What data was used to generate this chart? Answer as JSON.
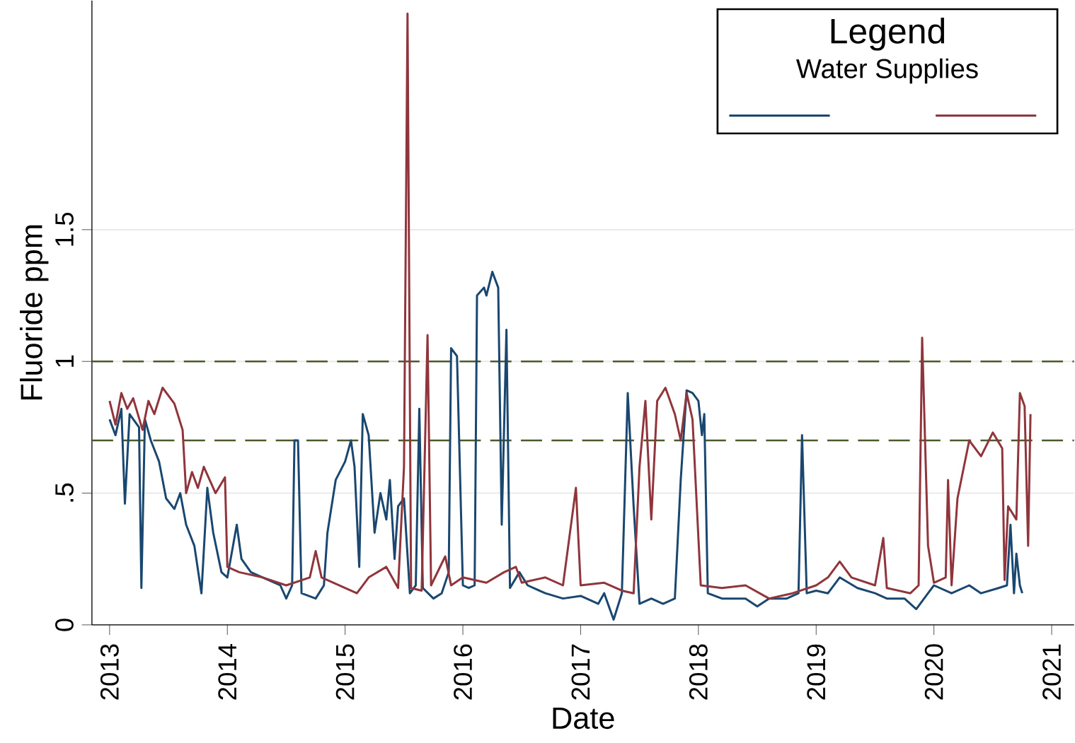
{
  "chart_data": {
    "type": "line",
    "xlabel": "Date",
    "ylabel": "Fluoride ppm",
    "legend_title": "Legend",
    "annotations": [
      "Water Supplies"
    ],
    "xlim": [
      2012.85,
      2021.19
    ],
    "xticks": [
      2013,
      2014,
      2015,
      2016,
      2017,
      2018,
      2019,
      2020,
      2021
    ],
    "ylim": [
      0,
      2.37
    ],
    "yticks": [
      0,
      {
        "value": 0.5,
        "label": ".5"
      },
      1,
      1.5
    ],
    "grid": "y",
    "ref_lines": [
      {
        "axis": "y",
        "value": 1.0,
        "color": "#4b5a2a",
        "line_style": "dashed"
      },
      {
        "axis": "y",
        "value": 0.7,
        "color": "#4b5a2a",
        "line_style": "dashed"
      }
    ],
    "series": [
      {
        "color": "#1a476f",
        "x": [
          2013.0,
          2013.05,
          2013.1,
          2013.13,
          2013.17,
          2013.25,
          2013.27,
          2013.3,
          2013.35,
          2013.42,
          2013.48,
          2013.55,
          2013.6,
          2013.65,
          2013.72,
          2013.78,
          2013.83,
          2013.88,
          2013.95,
          2014.0,
          2014.08,
          2014.12,
          2014.2,
          2014.3,
          2014.45,
          2014.5,
          2014.55,
          2014.57,
          2014.6,
          2014.63,
          2014.75,
          2014.82,
          2014.85,
          2014.92,
          2015.0,
          2015.05,
          2015.08,
          2015.12,
          2015.15,
          2015.2,
          2015.25,
          2015.3,
          2015.35,
          2015.38,
          2015.42,
          2015.45,
          2015.5,
          2015.55,
          2015.6,
          2015.63,
          2015.66,
          2015.75,
          2015.82,
          2015.88,
          2015.9,
          2015.95,
          2016.0,
          2016.05,
          2016.1,
          2016.12,
          2016.18,
          2016.2,
          2016.25,
          2016.3,
          2016.33,
          2016.37,
          2016.4,
          2016.48,
          2016.55,
          2016.7,
          2016.85,
          2017.0,
          2017.15,
          2017.2,
          2017.28,
          2017.35,
          2017.4,
          2017.45,
          2017.5,
          2017.6,
          2017.7,
          2017.8,
          2017.85,
          2017.9,
          2017.95,
          2018.0,
          2018.03,
          2018.05,
          2018.08,
          2018.2,
          2018.4,
          2018.5,
          2018.6,
          2018.75,
          2018.85,
          2018.88,
          2018.92,
          2019.0,
          2019.1,
          2019.2,
          2019.35,
          2019.5,
          2019.6,
          2019.75,
          2019.85,
          2019.95,
          2020.0,
          2020.15,
          2020.3,
          2020.4,
          2020.55,
          2020.62,
          2020.65,
          2020.68,
          2020.7,
          2020.73,
          2020.75
        ],
        "values": [
          0.78,
          0.72,
          0.82,
          0.46,
          0.8,
          0.75,
          0.14,
          0.78,
          0.7,
          0.62,
          0.48,
          0.44,
          0.5,
          0.38,
          0.3,
          0.12,
          0.52,
          0.35,
          0.2,
          0.18,
          0.38,
          0.25,
          0.2,
          0.18,
          0.15,
          0.1,
          0.15,
          0.7,
          0.7,
          0.12,
          0.1,
          0.15,
          0.35,
          0.55,
          0.62,
          0.7,
          0.6,
          0.22,
          0.8,
          0.72,
          0.35,
          0.5,
          0.4,
          0.55,
          0.25,
          0.45,
          0.48,
          0.12,
          0.15,
          0.82,
          0.14,
          0.1,
          0.12,
          0.2,
          1.05,
          1.02,
          0.15,
          0.14,
          0.15,
          1.25,
          1.28,
          1.25,
          1.34,
          1.28,
          0.38,
          1.12,
          0.14,
          0.2,
          0.15,
          0.12,
          0.1,
          0.11,
          0.08,
          0.12,
          0.02,
          0.12,
          0.88,
          0.45,
          0.08,
          0.1,
          0.08,
          0.1,
          0.55,
          0.89,
          0.88,
          0.85,
          0.72,
          0.8,
          0.12,
          0.1,
          0.1,
          0.07,
          0.1,
          0.1,
          0.12,
          0.72,
          0.12,
          0.13,
          0.12,
          0.18,
          0.14,
          0.12,
          0.1,
          0.1,
          0.06,
          0.12,
          0.15,
          0.12,
          0.15,
          0.12,
          0.14,
          0.15,
          0.38,
          0.12,
          0.27,
          0.15,
          0.12
        ]
      },
      {
        "color": "#90353b",
        "x": [
          2013.0,
          2013.05,
          2013.1,
          2013.15,
          2013.2,
          2013.28,
          2013.33,
          2013.38,
          2013.45,
          2013.55,
          2013.62,
          2013.65,
          2013.7,
          2013.75,
          2013.8,
          2013.85,
          2013.9,
          2013.98,
          2014.0,
          2014.1,
          2014.3,
          2014.5,
          2014.7,
          2014.75,
          2014.8,
          2015.0,
          2015.1,
          2015.2,
          2015.35,
          2015.45,
          2015.5,
          2015.53,
          2015.56,
          2015.65,
          2015.7,
          2015.73,
          2015.85,
          2015.9,
          2016.0,
          2016.2,
          2016.35,
          2016.45,
          2016.5,
          2016.7,
          2016.85,
          2016.96,
          2017.0,
          2017.2,
          2017.35,
          2017.45,
          2017.5,
          2017.55,
          2017.6,
          2017.65,
          2017.72,
          2017.8,
          2017.85,
          2017.9,
          2017.95,
          2018.02,
          2018.2,
          2018.4,
          2018.6,
          2018.8,
          2019.0,
          2019.1,
          2019.2,
          2019.3,
          2019.5,
          2019.57,
          2019.6,
          2019.8,
          2019.87,
          2019.9,
          2019.95,
          2020.0,
          2020.1,
          2020.12,
          2020.15,
          2020.2,
          2020.3,
          2020.4,
          2020.5,
          2020.58,
          2020.6,
          2020.63,
          2020.7,
          2020.73,
          2020.77,
          2020.8,
          2020.82
        ],
        "values": [
          0.85,
          0.76,
          0.88,
          0.82,
          0.86,
          0.74,
          0.85,
          0.8,
          0.9,
          0.84,
          0.74,
          0.5,
          0.58,
          0.52,
          0.6,
          0.55,
          0.5,
          0.56,
          0.22,
          0.2,
          0.18,
          0.15,
          0.18,
          0.28,
          0.18,
          0.14,
          0.12,
          0.18,
          0.22,
          0.14,
          0.6,
          2.32,
          0.14,
          0.13,
          1.1,
          0.15,
          0.26,
          0.15,
          0.18,
          0.16,
          0.2,
          0.22,
          0.16,
          0.18,
          0.15,
          0.52,
          0.15,
          0.16,
          0.13,
          0.12,
          0.6,
          0.85,
          0.4,
          0.85,
          0.9,
          0.8,
          0.7,
          0.88,
          0.78,
          0.15,
          0.14,
          0.15,
          0.1,
          0.12,
          0.15,
          0.18,
          0.24,
          0.18,
          0.15,
          0.33,
          0.14,
          0.12,
          0.15,
          1.09,
          0.3,
          0.16,
          0.18,
          0.55,
          0.15,
          0.48,
          0.7,
          0.64,
          0.73,
          0.67,
          0.17,
          0.45,
          0.4,
          0.88,
          0.83,
          0.3,
          0.8
        ]
      }
    ]
  }
}
